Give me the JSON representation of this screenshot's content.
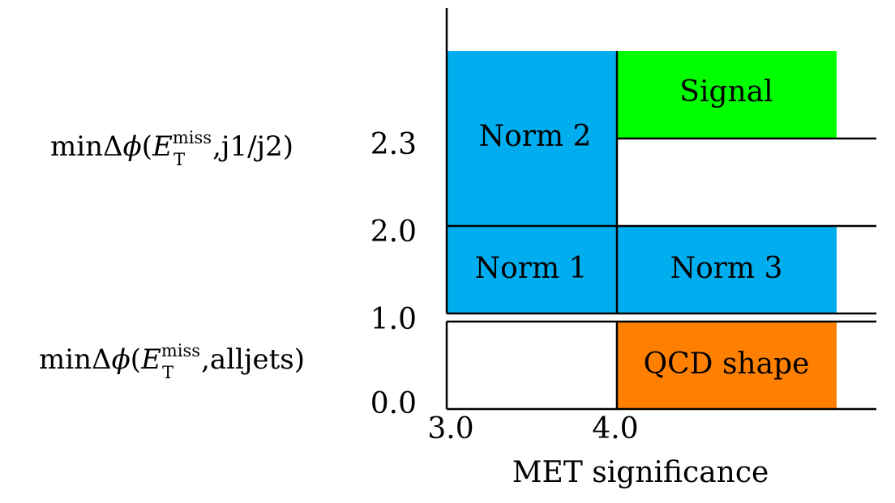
{
  "colors": {
    "norm": "#00aeef",
    "signal": "#00ff00",
    "qcd": "#ff8000",
    "line": "#000000"
  },
  "regions": {
    "norm2": "Norm 2",
    "signal": "Signal",
    "norm1": "Norm 1",
    "norm3": "Norm 3",
    "qcd": "QCD shape"
  },
  "y_ticks": {
    "t23": "2.3",
    "t20": "2.0",
    "t10": "1.0",
    "t00": "0.0"
  },
  "x_ticks": {
    "t30": "3.0",
    "t40": "4.0"
  },
  "x_axis_title": "MET significance",
  "side_labels": {
    "upper": {
      "prefix": "min",
      "delta": "Δ",
      "phi": "ϕ",
      "open": "(",
      "e": "E",
      "sup": "miss",
      "sub": "T",
      "tail": ",j1/j2)"
    },
    "lower": {
      "prefix": "min",
      "delta": "Δ",
      "phi": "ϕ",
      "open": "(",
      "e": "E",
      "sup": "miss",
      "sub": "T",
      "tail": ",alljets)"
    }
  }
}
